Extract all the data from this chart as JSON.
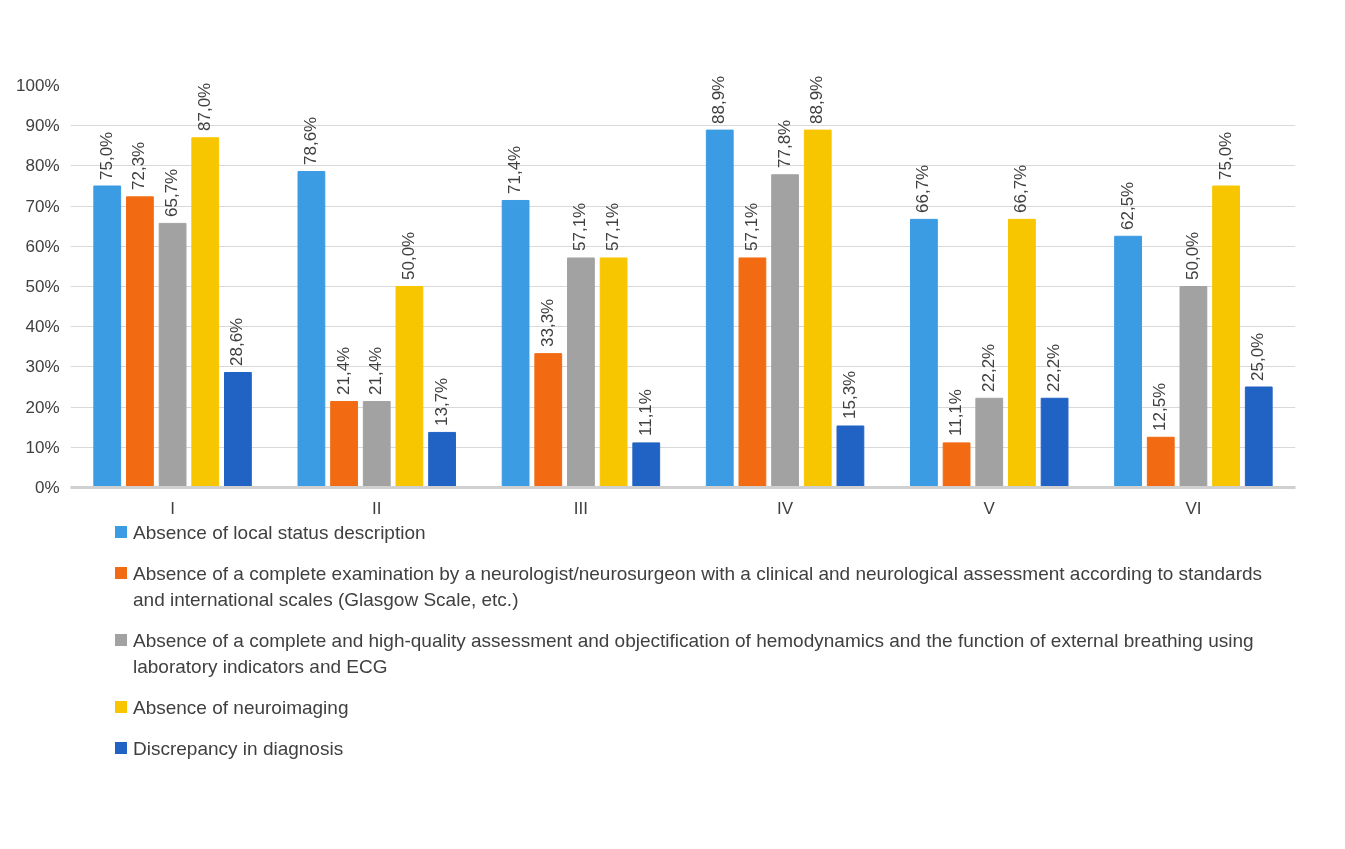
{
  "chart_data": {
    "type": "bar",
    "categories": [
      "I",
      "II",
      "III",
      "IV",
      "V",
      "VI"
    ],
    "series": [
      {
        "name": "Absence of local status description",
        "color": "#3b9be3",
        "values": [
          75.0,
          78.6,
          71.4,
          88.9,
          66.7,
          62.5
        ],
        "value_labels": [
          "75,0%",
          "78,6%",
          "71,4%",
          "88,9%",
          "66,7%",
          "62,5%"
        ]
      },
      {
        "name": "Absence of a complete examination by a neurologist/neurosurgeon with a clinical and neurological assessment according to standards and international scales (Glasgow Scale, etc.)",
        "color": "#f26b12",
        "values": [
          72.3,
          21.4,
          33.3,
          57.1,
          11.1,
          12.5
        ],
        "value_labels": [
          "72,3%",
          "21,4%",
          "33,3%",
          "57,1%",
          "11,1%",
          "12,5%"
        ]
      },
      {
        "name": "Absence of a complete and high-quality assessment and objectification of hemodynamics and the function of external breathing using laboratory indicators and ECG",
        "color": "#a2a2a2",
        "values": [
          65.7,
          21.4,
          57.1,
          77.8,
          22.2,
          50.0
        ],
        "value_labels": [
          "65,7%",
          "21,4%",
          "57,1%",
          "77,8%",
          "22,2%",
          "50,0%"
        ]
      },
      {
        "name": "Absence of neuroimaging",
        "color": "#f7c600",
        "values": [
          87.0,
          50.0,
          57.1,
          88.9,
          66.7,
          75.0
        ],
        "value_labels": [
          "87,0%",
          "50,0%",
          "57,1%",
          "88,9%",
          "66,7%",
          "75,0%"
        ]
      },
      {
        "name": "Discrepancy in diagnosis",
        "color": "#2163c4",
        "values": [
          28.6,
          13.7,
          11.1,
          15.3,
          22.2,
          25.0
        ],
        "value_labels": [
          "28,6%",
          "13,7%",
          "11,1%",
          "15,3%",
          "22,2%",
          "25,0%"
        ]
      }
    ],
    "ylim": [
      0,
      100
    ],
    "yticks": [
      {
        "value": 0,
        "label": "0%"
      },
      {
        "value": 10,
        "label": "10%"
      },
      {
        "value": 20,
        "label": "20%"
      },
      {
        "value": 30,
        "label": "30%"
      },
      {
        "value": 40,
        "label": "40%"
      },
      {
        "value": 50,
        "label": "50%"
      },
      {
        "value": 60,
        "label": "60%"
      },
      {
        "value": 70,
        "label": "70%"
      },
      {
        "value": 80,
        "label": "80%"
      },
      {
        "value": 90,
        "label": "90%"
      },
      {
        "value": 100,
        "label": "100%"
      }
    ],
    "grid": "y",
    "legend": "bottom"
  }
}
